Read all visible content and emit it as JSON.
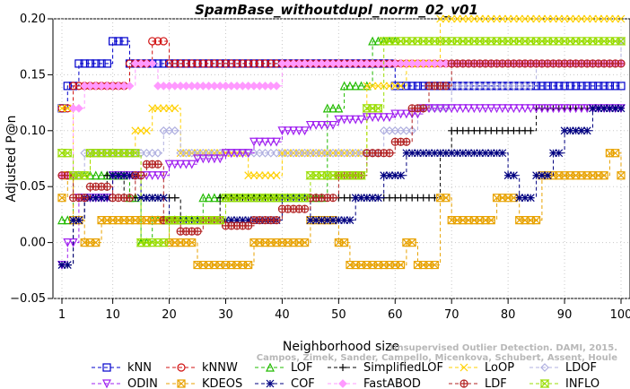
{
  "chart_data": {
    "type": "line",
    "title": "SpamBase_withoutdupl_norm_02_v01",
    "xlabel": "Neighborhood size",
    "ylabel": "Adjusted P@n",
    "xlim": [
      1,
      100
    ],
    "ylim": [
      -0.05,
      0.2
    ],
    "x_ticks": [
      1,
      10,
      20,
      30,
      40,
      50,
      60,
      70,
      80,
      90,
      100
    ],
    "y_ticks": [
      -0.05,
      0.0,
      0.05,
      0.1,
      0.15,
      0.2
    ],
    "y_tick_labels": [
      "−0.05",
      "0.00",
      "0.05",
      "0.10",
      "0.15",
      "0.20"
    ],
    "grid": true,
    "legend_position": "bottom",
    "credit_lines": [
      "Unsupervised Outlier Detection. DAMI, 2015.",
      "Campos, Zimek, Sander, Campello, Micenkova, Schubert, Assent, Houle"
    ],
    "series": [
      {
        "name": "kNN",
        "color": "#0000cc",
        "marker": "square",
        "segments": [
          [
            1,
            0.12
          ],
          [
            2,
            0.14
          ],
          [
            4,
            0.16
          ],
          [
            10,
            0.18
          ],
          [
            13,
            0.16
          ],
          [
            60,
            0.14
          ],
          [
            100,
            0.14
          ]
        ]
      },
      {
        "name": "kNNW",
        "color": "#d01010",
        "marker": "circle",
        "segments": [
          [
            1,
            0.12
          ],
          [
            3,
            0.14
          ],
          [
            13,
            0.16
          ],
          [
            17,
            0.18
          ],
          [
            20,
            0.16
          ],
          [
            100,
            0.16
          ]
        ]
      },
      {
        "name": "LOF",
        "color": "#22bb00",
        "marker": "triangle-up",
        "segments": [
          [
            1,
            0.02
          ],
          [
            3,
            0.06
          ],
          [
            7,
            0.06
          ],
          [
            10,
            0.06
          ],
          [
            13,
            0.04
          ],
          [
            15,
            0.0
          ],
          [
            17,
            0.02
          ],
          [
            22,
            0.02
          ],
          [
            26,
            0.04
          ],
          [
            45,
            0.04
          ],
          [
            48,
            0.12
          ],
          [
            51,
            0.14
          ],
          [
            56,
            0.18
          ],
          [
            60,
            0.18
          ]
        ]
      },
      {
        "name": "SimplifiedLOF",
        "color": "#000000",
        "marker": "plus",
        "segments": [
          [
            1,
            -0.02
          ],
          [
            3,
            0.02
          ],
          [
            5,
            0.04
          ],
          [
            9,
            0.06
          ],
          [
            12,
            0.04
          ],
          [
            22,
            0.02
          ],
          [
            27,
            0.02
          ],
          [
            29,
            0.04
          ],
          [
            50,
            0.04
          ],
          [
            65,
            0.04
          ],
          [
            68,
            0.08
          ],
          [
            70,
            0.1
          ],
          [
            83,
            0.1
          ],
          [
            85,
            0.12
          ],
          [
            100,
            0.12
          ]
        ]
      },
      {
        "name": "LoOP",
        "color": "#ffd000",
        "marker": "x",
        "segments": [
          [
            1,
            0.12
          ],
          [
            3,
            0.06
          ],
          [
            6,
            0.08
          ],
          [
            14,
            0.1
          ],
          [
            17,
            0.12
          ],
          [
            22,
            0.08
          ],
          [
            34,
            0.06
          ],
          [
            40,
            0.08
          ],
          [
            55,
            0.14
          ],
          [
            62,
            0.16
          ],
          [
            68,
            0.2
          ],
          [
            100,
            0.2
          ]
        ]
      },
      {
        "name": "LDOF",
        "color": "#b0b0e0",
        "marker": "diamond",
        "segments": [
          [
            1,
            0.06
          ],
          [
            5,
            0.08
          ],
          [
            16,
            0.08
          ],
          [
            19,
            0.1
          ],
          [
            22,
            0.08
          ],
          [
            55,
            0.08
          ],
          [
            58,
            0.1
          ],
          [
            64,
            0.12
          ],
          [
            70,
            0.14
          ],
          [
            85,
            0.16
          ],
          [
            100,
            0.18
          ]
        ]
      },
      {
        "name": "ODIN",
        "color": "#a020f0",
        "marker": "triangle-down",
        "segments": [
          [
            1,
            -0.02
          ],
          [
            2,
            0.0
          ],
          [
            4,
            0.04
          ],
          [
            10,
            0.06
          ],
          [
            15,
            0.06
          ],
          [
            20,
            0.07
          ],
          [
            25,
            0.075
          ],
          [
            30,
            0.08
          ],
          [
            35,
            0.09
          ],
          [
            40,
            0.1
          ],
          [
            45,
            0.105
          ],
          [
            50,
            0.11
          ],
          [
            55,
            0.112
          ],
          [
            60,
            0.115
          ],
          [
            65,
            0.12
          ],
          [
            70,
            0.12
          ],
          [
            100,
            0.12
          ]
        ]
      },
      {
        "name": "KDEOS",
        "color": "#e8a200",
        "marker": "square-x",
        "segments": [
          [
            1,
            0.04
          ],
          [
            2,
            0.06
          ],
          [
            3,
            0.02
          ],
          [
            5,
            0.0
          ],
          [
            8,
            0.02
          ],
          [
            15,
            0.02
          ],
          [
            20,
            0.0
          ],
          [
            25,
            -0.02
          ],
          [
            33,
            -0.02
          ],
          [
            35,
            0.0
          ],
          [
            45,
            0.02
          ],
          [
            50,
            0.0
          ],
          [
            52,
            -0.02
          ],
          [
            60,
            -0.02
          ],
          [
            62,
            0.0
          ],
          [
            64,
            -0.02
          ],
          [
            66,
            -0.02
          ],
          [
            68,
            0.04
          ],
          [
            70,
            0.02
          ],
          [
            76,
            0.02
          ],
          [
            78,
            0.04
          ],
          [
            82,
            0.02
          ],
          [
            86,
            0.06
          ],
          [
            96,
            0.06
          ],
          [
            98,
            0.08
          ],
          [
            100,
            0.06
          ]
        ]
      },
      {
        "name": "COF",
        "color": "#000080",
        "marker": "star",
        "segments": [
          [
            1,
            -0.02
          ],
          [
            3,
            0.02
          ],
          [
            5,
            0.04
          ],
          [
            10,
            0.06
          ],
          [
            15,
            0.04
          ],
          [
            20,
            0.02
          ],
          [
            27,
            0.02
          ],
          [
            30,
            0.02
          ],
          [
            35,
            0.02
          ],
          [
            40,
            0.04
          ],
          [
            45,
            0.02
          ],
          [
            50,
            0.02
          ],
          [
            53,
            0.04
          ],
          [
            58,
            0.06
          ],
          [
            62,
            0.08
          ],
          [
            75,
            0.08
          ],
          [
            80,
            0.06
          ],
          [
            82,
            0.04
          ],
          [
            85,
            0.06
          ],
          [
            88,
            0.08
          ],
          [
            90,
            0.1
          ],
          [
            95,
            0.12
          ],
          [
            100,
            0.12
          ]
        ]
      },
      {
        "name": "FastABOD",
        "color": "#ff99ff",
        "marker": "diamond-filled",
        "segments": [
          [
            1,
            0.06
          ],
          [
            3,
            0.12
          ],
          [
            5,
            0.14
          ],
          [
            12,
            0.14
          ],
          [
            14,
            0.16
          ],
          [
            18,
            0.14
          ],
          [
            24,
            0.14
          ],
          [
            30,
            0.14
          ],
          [
            35,
            0.14
          ],
          [
            40,
            0.16
          ],
          [
            100,
            0.16
          ]
        ]
      },
      {
        "name": "LDF",
        "color": "#b22222",
        "marker": "circle-plus",
        "segments": [
          [
            1,
            0.06
          ],
          [
            3,
            0.04
          ],
          [
            6,
            0.05
          ],
          [
            10,
            0.04
          ],
          [
            14,
            0.06
          ],
          [
            16,
            0.07
          ],
          [
            19,
            0.02
          ],
          [
            22,
            0.01
          ],
          [
            26,
            0.02
          ],
          [
            30,
            0.015
          ],
          [
            35,
            0.02
          ],
          [
            40,
            0.03
          ],
          [
            45,
            0.04
          ],
          [
            50,
            0.06
          ],
          [
            55,
            0.08
          ],
          [
            60,
            0.09
          ],
          [
            63,
            0.12
          ],
          [
            66,
            0.14
          ],
          [
            70,
            0.16
          ],
          [
            100,
            0.16
          ]
        ]
      },
      {
        "name": "INFLO",
        "color": "#99dd00",
        "marker": "hourglass",
        "segments": [
          [
            1,
            0.08
          ],
          [
            3,
            0.06
          ],
          [
            6,
            0.08
          ],
          [
            10,
            0.08
          ],
          [
            15,
            0.0
          ],
          [
            18,
            0.0
          ],
          [
            20,
            0.02
          ],
          [
            25,
            0.02
          ],
          [
            30,
            0.04
          ],
          [
            40,
            0.04
          ],
          [
            45,
            0.06
          ],
          [
            50,
            0.06
          ],
          [
            55,
            0.12
          ],
          [
            58,
            0.18
          ],
          [
            66,
            0.18
          ],
          [
            70,
            0.18
          ],
          [
            100,
            0.18
          ]
        ]
      }
    ]
  }
}
